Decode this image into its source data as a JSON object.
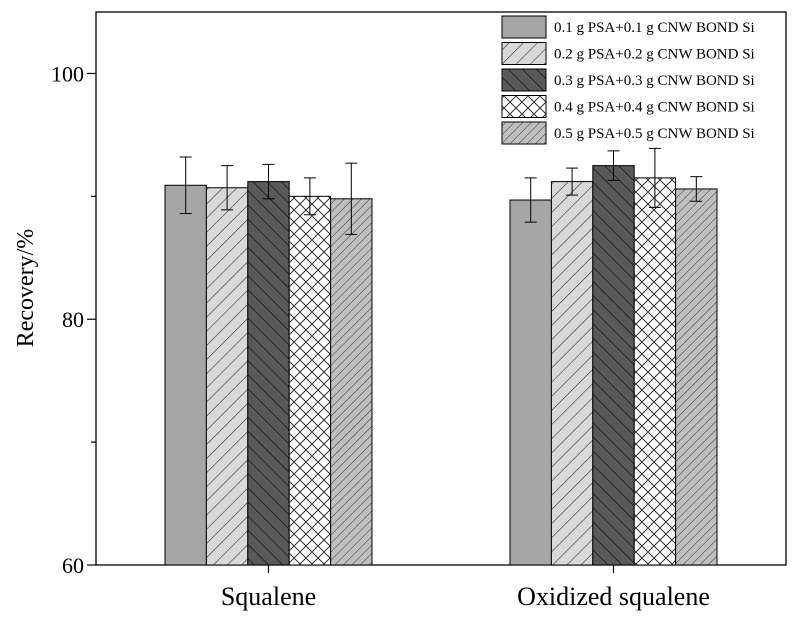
{
  "chart_data": {
    "type": "bar",
    "title": "",
    "xlabel": "",
    "ylabel": "Recovery/%",
    "ylim": [
      60,
      105
    ],
    "yticks": [
      60,
      80,
      100
    ],
    "ytick_labels": [
      "60",
      "80",
      "100"
    ],
    "categories": [
      "Squalene",
      "Oxidized squalene"
    ],
    "legend_position": "top-right",
    "series": [
      {
        "name": "0.1 g PSA+0.1 g CNW BOND Si",
        "values": [
          90.9,
          89.7
        ],
        "errors": [
          2.3,
          1.8
        ],
        "fill": "#a6a6a6",
        "pattern": "solid"
      },
      {
        "name": "0.2 g PSA+0.2 g CNW BOND Si",
        "values": [
          90.7,
          91.2
        ],
        "errors": [
          1.8,
          1.1
        ],
        "fill": "#d9d9d9",
        "pattern": "hatch-forward"
      },
      {
        "name": "0.3 g PSA+0.3 g CNW BOND Si",
        "values": [
          91.2,
          92.5
        ],
        "errors": [
          1.4,
          1.2
        ],
        "fill": "#595959",
        "pattern": "hatch-back"
      },
      {
        "name": "0.4 g PSA+0.4 g CNW BOND Si",
        "values": [
          90.0,
          91.5
        ],
        "errors": [
          1.5,
          2.4
        ],
        "fill": "#ffffff",
        "pattern": "crosshatch"
      },
      {
        "name": "0.5 g PSA+0.5 g CNW BOND Si",
        "values": [
          89.8,
          90.6
        ],
        "errors": [
          2.9,
          1.0
        ],
        "fill": "#bfbfbf",
        "pattern": "hatch-forward-dense"
      }
    ]
  }
}
